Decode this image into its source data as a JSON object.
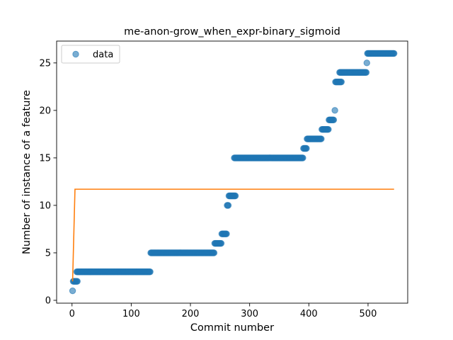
{
  "chart_data": {
    "type": "scatter",
    "title": "me-anon-grow_when_expr-binary_sigmoid",
    "xlabel": "Commit number",
    "ylabel": "Number of instance of a feature",
    "xlim": [
      -26,
      567
    ],
    "ylim": [
      -0.3,
      27.3
    ],
    "xticks": [
      0,
      100,
      200,
      300,
      400,
      500
    ],
    "yticks": [
      0,
      5,
      10,
      15,
      20,
      25
    ],
    "grid": false,
    "legend": {
      "position": "top-left",
      "entries": [
        "data"
      ]
    },
    "colors": {
      "points": "#1f77b4",
      "fit_line": "#ff7f0e"
    },
    "series": [
      {
        "name": "data",
        "kind": "scatter",
        "segments": [
          {
            "x_start": 1,
            "x_end": 1,
            "y": 1
          },
          {
            "x_start": 2,
            "x_end": 9,
            "y": 2
          },
          {
            "x_start": 8,
            "x_end": 132,
            "y": 3
          },
          {
            "x_start": 133,
            "x_end": 240,
            "y": 5
          },
          {
            "x_start": 241,
            "x_end": 252,
            "y": 6
          },
          {
            "x_start": 253,
            "x_end": 261,
            "y": 7
          },
          {
            "x_start": 262,
            "x_end": 264,
            "y": 10
          },
          {
            "x_start": 265,
            "x_end": 276,
            "y": 11
          },
          {
            "x_start": 274,
            "x_end": 390,
            "y": 15
          },
          {
            "x_start": 391,
            "x_end": 396,
            "y": 16
          },
          {
            "x_start": 397,
            "x_end": 421,
            "y": 17
          },
          {
            "x_start": 422,
            "x_end": 433,
            "y": 18
          },
          {
            "x_start": 434,
            "x_end": 442,
            "y": 19
          },
          {
            "x_start": 444,
            "x_end": 444,
            "y": 20
          },
          {
            "x_start": 445,
            "x_end": 455,
            "y": 23
          },
          {
            "x_start": 452,
            "x_end": 497,
            "y": 24
          },
          {
            "x_start": 498,
            "x_end": 498,
            "y": 25
          },
          {
            "x_start": 499,
            "x_end": 544,
            "y": 26
          }
        ]
      },
      {
        "kind": "line",
        "points": [
          [
            1,
            2
          ],
          [
            5,
            11.7
          ],
          [
            544,
            11.7
          ]
        ]
      }
    ]
  }
}
